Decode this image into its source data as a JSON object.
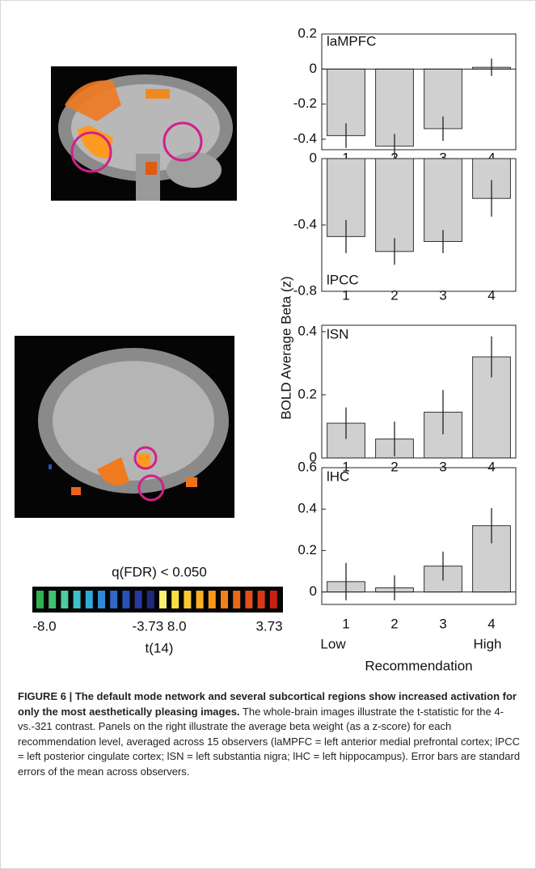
{
  "chart_data": [
    {
      "type": "bar",
      "title": "laMPFC",
      "categories": [
        "1",
        "2",
        "3",
        "4"
      ],
      "values": [
        -0.38,
        -0.44,
        -0.34,
        0.01
      ],
      "errors": [
        0.07,
        0.07,
        0.07,
        0.05
      ],
      "color": "#d0d0d0",
      "ylim": [
        -0.46,
        0.2
      ],
      "yticks": [
        0.2,
        0,
        -0.2,
        -0.4
      ]
    },
    {
      "type": "bar",
      "title": "lPCC",
      "categories": [
        "1",
        "2",
        "3",
        "4"
      ],
      "values": [
        -0.47,
        -0.56,
        -0.5,
        -0.24
      ],
      "errors": [
        0.1,
        0.08,
        0.07,
        0.11
      ],
      "color": "#d0d0d0",
      "ylim": [
        -0.8,
        0
      ],
      "yticks": [
        0,
        -0.4,
        -0.8
      ]
    },
    {
      "type": "bar",
      "title": "lSN",
      "categories": [
        "1",
        "2",
        "3",
        "4"
      ],
      "values": [
        0.11,
        0.06,
        0.145,
        0.32
      ],
      "errors": [
        0.05,
        0.055,
        0.07,
        0.065
      ],
      "color": "#d0d0d0",
      "ylim": [
        0,
        0.42
      ],
      "yticks": [
        0.4,
        0.2,
        0
      ]
    },
    {
      "type": "bar",
      "title": "lHC",
      "categories": [
        "1",
        "2",
        "3",
        "4"
      ],
      "values": [
        0.05,
        0.02,
        0.125,
        0.32
      ],
      "errors": [
        0.09,
        0.06,
        0.07,
        0.085
      ],
      "color": "#d0d0d0",
      "ylim": [
        -0.06,
        0.6
      ],
      "yticks": [
        0.6,
        0.4,
        0.2,
        0
      ]
    }
  ],
  "y_axis_label": "BOLD Average Beta (z)",
  "x_axis_label": "Recommendation",
  "x_end_labels": [
    "Low",
    "High"
  ],
  "colorbar": {
    "title": "q(FDR) < 0.050",
    "labels": [
      "-8.0",
      "-3.73 8.0",
      "3.73"
    ],
    "axis_label": "t(14)"
  },
  "caption": {
    "heading": "FIGURE 6 | The default mode network and several subcortical regions show increased activation for only the most aesthetically pleasing images.",
    "body": " The whole-brain images illustrate the t-statistic for the 4-vs.-321 contrast. Panels on the right illustrate the average beta weight (as a z-score) for each recommendation level, averaged across 15 observers (laMPFC = left anterior medial prefrontal cortex; lPCC = left posterior cingulate cortex; lSN = left substantia nigra; lHC = left hippocampus). Error bars are standard errors of the mean across observers."
  }
}
